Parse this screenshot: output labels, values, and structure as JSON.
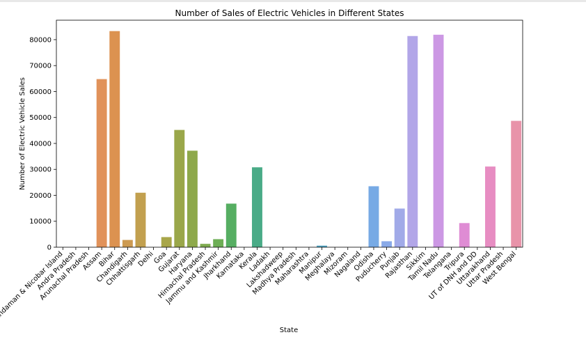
{
  "chart_data": {
    "type": "bar",
    "title": "Number of Sales of Electric Vehicles in Different States",
    "xlabel": "State",
    "ylabel": "Number of Electric Vehicle Sales",
    "ylim": [
      0,
      87500
    ],
    "yticks": [
      0,
      10000,
      20000,
      30000,
      40000,
      50000,
      60000,
      70000,
      80000
    ],
    "grid": false,
    "categories": [
      "Andaman & Nicobar Island",
      "Andra Pradesh",
      "Arunachal Pradesh",
      "Assam",
      "Bihar",
      "Chandigarh",
      "Chhattisgarh",
      "Delhi",
      "Goa",
      "Gujarat",
      "Haryana",
      "Himachal Pradesh",
      "Jammu and Kashmir",
      "Jharkhand",
      "Karnataka",
      "Kerala",
      "Ladakh",
      "Lakshadweep",
      "Madhya Pradesh",
      "Maharashtra",
      "Manipur",
      "Meghalaya",
      "Mizoram",
      "Nagaland",
      "Odisha",
      "Puducherry",
      "Punjab",
      "Rajasthan",
      "Sikkim",
      "Tamil Nadu",
      "Telangana",
      "Tripura",
      "UT of DNH and DD",
      "Uttarakhand",
      "Uttar Pradesh",
      "West Bengal"
    ],
    "values": [
      0,
      0,
      0,
      64800,
      83300,
      2800,
      21000,
      0,
      3900,
      45200,
      37200,
      1300,
      3100,
      16800,
      0,
      30800,
      0,
      0,
      0,
      0,
      600,
      0,
      0,
      0,
      23500,
      2300,
      14900,
      81400,
      0,
      81900,
      0,
      9300,
      0,
      31100,
      0,
      48700
    ],
    "colors": [
      "#ec8f6a",
      "#e9926a",
      "#e5936a",
      "#e1925a",
      "#dc9250",
      "#cd9b52",
      "#c2a04f",
      "#b5a24c",
      "#a8a649",
      "#9aa74a",
      "#8ea94b",
      "#7fab50",
      "#6dae55",
      "#56ae62",
      "#4cad74",
      "#4aab87",
      "#49aa96",
      "#48a8a2",
      "#48a6ad",
      "#4aa4b7",
      "#4ea3c2",
      "#55a2cf",
      "#5da4da",
      "#69a8e2",
      "#77aae5",
      "#8aaae8",
      "#a1aae8",
      "#b2a6e8",
      "#c09fe6",
      "#cc98e4",
      "#d791dc",
      "#df8cd4",
      "#e58ccb",
      "#e78dc2",
      "#e990b6",
      "#e893a9"
    ]
  }
}
